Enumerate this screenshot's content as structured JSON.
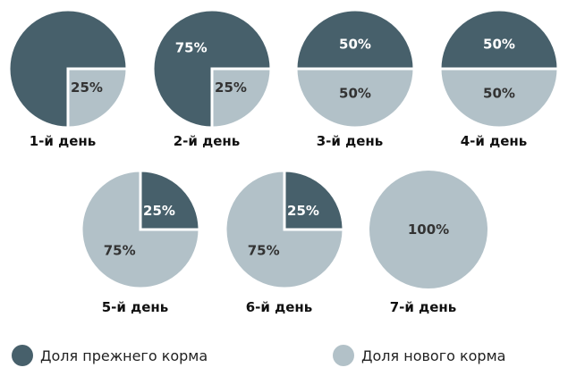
{
  "colors": {
    "old_food": "#47606b",
    "new_food": "#b2c1c8"
  },
  "legend": {
    "old_label": "Доля прежнего корма",
    "new_label": "Доля нового корма"
  },
  "chart_data": {
    "type": "pie",
    "series_names": [
      "Доля прежнего корма",
      "Доля нового корма"
    ],
    "pies": [
      {
        "day": "1-й день",
        "old": 75,
        "new": 25,
        "labels": {
          "old": "",
          "new": "25%"
        }
      },
      {
        "day": "2-й день",
        "old": 75,
        "new": 25,
        "labels": {
          "old": "75%",
          "new": "25%"
        }
      },
      {
        "day": "3-й день",
        "old": 50,
        "new": 50,
        "labels": {
          "old": "50%",
          "new": "50%"
        }
      },
      {
        "day": "4-й день",
        "old": 50,
        "new": 50,
        "labels": {
          "old": "50%",
          "new": "50%"
        }
      },
      {
        "day": "5-й день",
        "old": 25,
        "new": 75,
        "labels": {
          "old": "25%",
          "new": "75%"
        }
      },
      {
        "day": "6-й день",
        "old": 25,
        "new": 75,
        "labels": {
          "old": "25%",
          "new": "75%"
        }
      },
      {
        "day": "7-й день",
        "old": 0,
        "new": 100,
        "labels": {
          "old": "",
          "new": "100%"
        }
      }
    ]
  }
}
